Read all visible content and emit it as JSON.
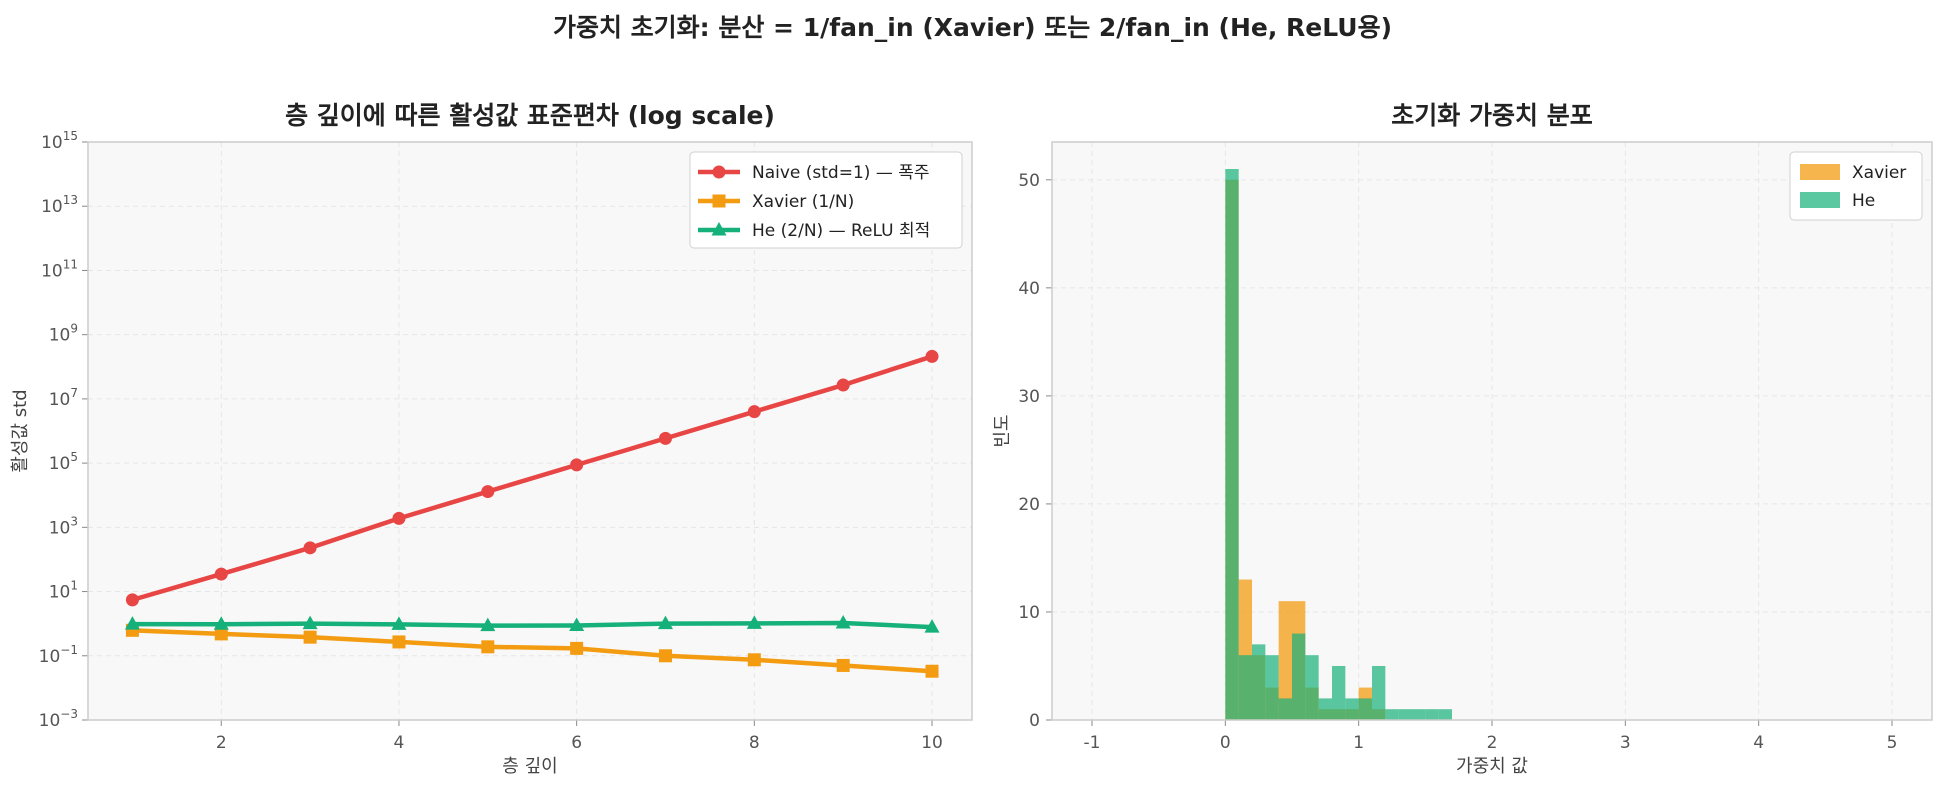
{
  "suptitle": "가중치 초기화: 분산 = 1/fan_in (Xavier) 또는 2/fan_in (He, ReLU용)",
  "colors": {
    "naive": "#e84545",
    "xavier": "#f39c12",
    "he": "#16b07a",
    "plot_bg": "#f8f8f8",
    "axis": "#cccccc",
    "grid": "#e6e6e6"
  },
  "chart_data": [
    {
      "type": "line",
      "title": "층 깊이에 따른 활성값 표준편차 (log scale)",
      "xlabel": "층 깊이",
      "ylabel": "활성값 std",
      "yscale": "log",
      "xlim": [
        0.5,
        10.45
      ],
      "ylim": [
        0.001,
        1000000000000000.0
      ],
      "x_ticks": [
        2,
        4,
        6,
        8,
        10
      ],
      "y_ticks": [
        {
          "value": 0.001,
          "base": "10",
          "exp": "−3"
        },
        {
          "value": 0.1,
          "base": "10",
          "exp": "−1"
        },
        {
          "value": 10,
          "base": "10",
          "exp": "1"
        },
        {
          "value": 1000,
          "base": "10",
          "exp": "3"
        },
        {
          "value": 100000,
          "base": "10",
          "exp": "5"
        },
        {
          "value": 10000000,
          "base": "10",
          "exp": "7"
        },
        {
          "value": 1000000000,
          "base": "10",
          "exp": "9"
        },
        {
          "value": 100000000000,
          "base": "10",
          "exp": "11"
        },
        {
          "value": 10000000000000,
          "base": "10",
          "exp": "13"
        },
        {
          "value": 1000000000000000,
          "base": "10",
          "exp": "15"
        }
      ],
      "grid": true,
      "legend_position": "top-right",
      "x": [
        1,
        2,
        3,
        4,
        5,
        6,
        7,
        8,
        9,
        10
      ],
      "series": [
        {
          "name": "Naive (std=1) — 폭주",
          "color_key": "naive",
          "marker": "circle",
          "values": [
            5.5,
            35,
            230,
            1900,
            13000,
            88000,
            590000,
            4000000,
            27000000,
            210000000
          ]
        },
        {
          "name": "Xavier (1/N)",
          "color_key": "xavier",
          "marker": "square",
          "values": [
            0.62,
            0.48,
            0.38,
            0.27,
            0.19,
            0.17,
            0.1,
            0.075,
            0.05,
            0.033
          ]
        },
        {
          "name": "He (2/N) — ReLU 최적",
          "color_key": "he",
          "marker": "triangle",
          "values": [
            0.97,
            0.96,
            1.0,
            0.95,
            0.87,
            0.88,
            1.0,
            1.02,
            1.05,
            0.78
          ]
        }
      ]
    },
    {
      "type": "bar",
      "subtype": "histogram",
      "title": "초기화 가중치 분포",
      "xlabel": "가중치 값",
      "ylabel": "빈도",
      "xlim": [
        -1.3,
        5.3
      ],
      "ylim": [
        0,
        53.5
      ],
      "x_ticks": [
        -1,
        0,
        1,
        2,
        3,
        4,
        5
      ],
      "y_ticks": [
        0,
        10,
        20,
        30,
        40,
        50
      ],
      "grid": true,
      "legend_position": "top-right",
      "bin_width": 0.1,
      "series": [
        {
          "name": "Xavier",
          "color_key": "xavier",
          "bins": [
            {
              "x0": 0.0,
              "count": 50
            },
            {
              "x0": 0.1,
              "count": 13
            },
            {
              "x0": 0.2,
              "count": 6
            },
            {
              "x0": 0.3,
              "count": 3
            },
            {
              "x0": 0.4,
              "count": 11
            },
            {
              "x0": 0.5,
              "count": 11
            },
            {
              "x0": 0.6,
              "count": 3
            },
            {
              "x0": 0.7,
              "count": 1
            },
            {
              "x0": 0.8,
              "count": 1
            },
            {
              "x0": 0.9,
              "count": 1
            },
            {
              "x0": 1.0,
              "count": 3
            },
            {
              "x0": 1.1,
              "count": 1
            }
          ]
        },
        {
          "name": "He",
          "color_key": "he",
          "bins": [
            {
              "x0": 0.0,
              "count": 51
            },
            {
              "x0": 0.1,
              "count": 6
            },
            {
              "x0": 0.2,
              "count": 7
            },
            {
              "x0": 0.3,
              "count": 6
            },
            {
              "x0": 0.4,
              "count": 2
            },
            {
              "x0": 0.5,
              "count": 8
            },
            {
              "x0": 0.6,
              "count": 6
            },
            {
              "x0": 0.7,
              "count": 2
            },
            {
              "x0": 0.8,
              "count": 5
            },
            {
              "x0": 0.9,
              "count": 2
            },
            {
              "x0": 1.0,
              "count": 2
            },
            {
              "x0": 1.1,
              "count": 5
            },
            {
              "x0": 1.2,
              "count": 1
            },
            {
              "x0": 1.3,
              "count": 1
            },
            {
              "x0": 1.4,
              "count": 1
            },
            {
              "x0": 1.5,
              "count": 1
            },
            {
              "x0": 1.6,
              "count": 1
            }
          ]
        }
      ]
    }
  ]
}
